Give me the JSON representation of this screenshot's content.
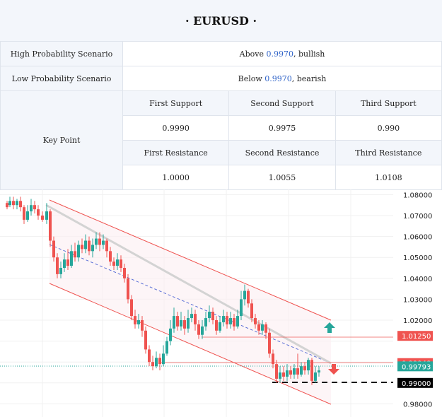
{
  "header": {
    "title": "·   EURUSD ·"
  },
  "scenarios": {
    "high": {
      "label": "High Probability Scenario",
      "prefix": "Above ",
      "level": "0.9970",
      "suffix": ", bullish"
    },
    "low": {
      "label": "Low Probability Scenario",
      "prefix": "Below ",
      "level": "0.9970",
      "suffix": ", bearish"
    }
  },
  "key_point": {
    "label": "Key Point",
    "support_headers": [
      "First Support",
      "Second Support",
      "Third Support"
    ],
    "support_values": [
      "0.9990",
      "0.9975",
      "0.990"
    ],
    "resistance_headers": [
      "First Resistance",
      "Second Resistance",
      "Third Resistance"
    ],
    "resistance_values": [
      "1.0000",
      "1.0055",
      "1.0108"
    ]
  },
  "chart_data": {
    "type": "candlestick",
    "y_ticks": [
      "1.08000",
      "1.07000",
      "1.06000",
      "1.05000",
      "1.04000",
      "1.03000",
      "1.02000",
      "1.01250",
      "0.99948",
      "0.99793",
      "0.99000",
      "0.98000"
    ],
    "price_tags": [
      {
        "value": "1.01250",
        "bg": "#ef5350"
      },
      {
        "value": "0.99948",
        "bg": "#ef5350"
      },
      {
        "value": "0.99793",
        "bg": "#26a69a"
      },
      {
        "value": "0.99000",
        "bg": "#000000"
      }
    ],
    "colors": {
      "up": "#26a69a",
      "down": "#ef5350",
      "channel": "#ef5350",
      "ma": "#cfcfcf",
      "trend": "#5a6fd6",
      "bull_arrow": "#26a69a",
      "bear_arrow": "#ef5350"
    }
  }
}
